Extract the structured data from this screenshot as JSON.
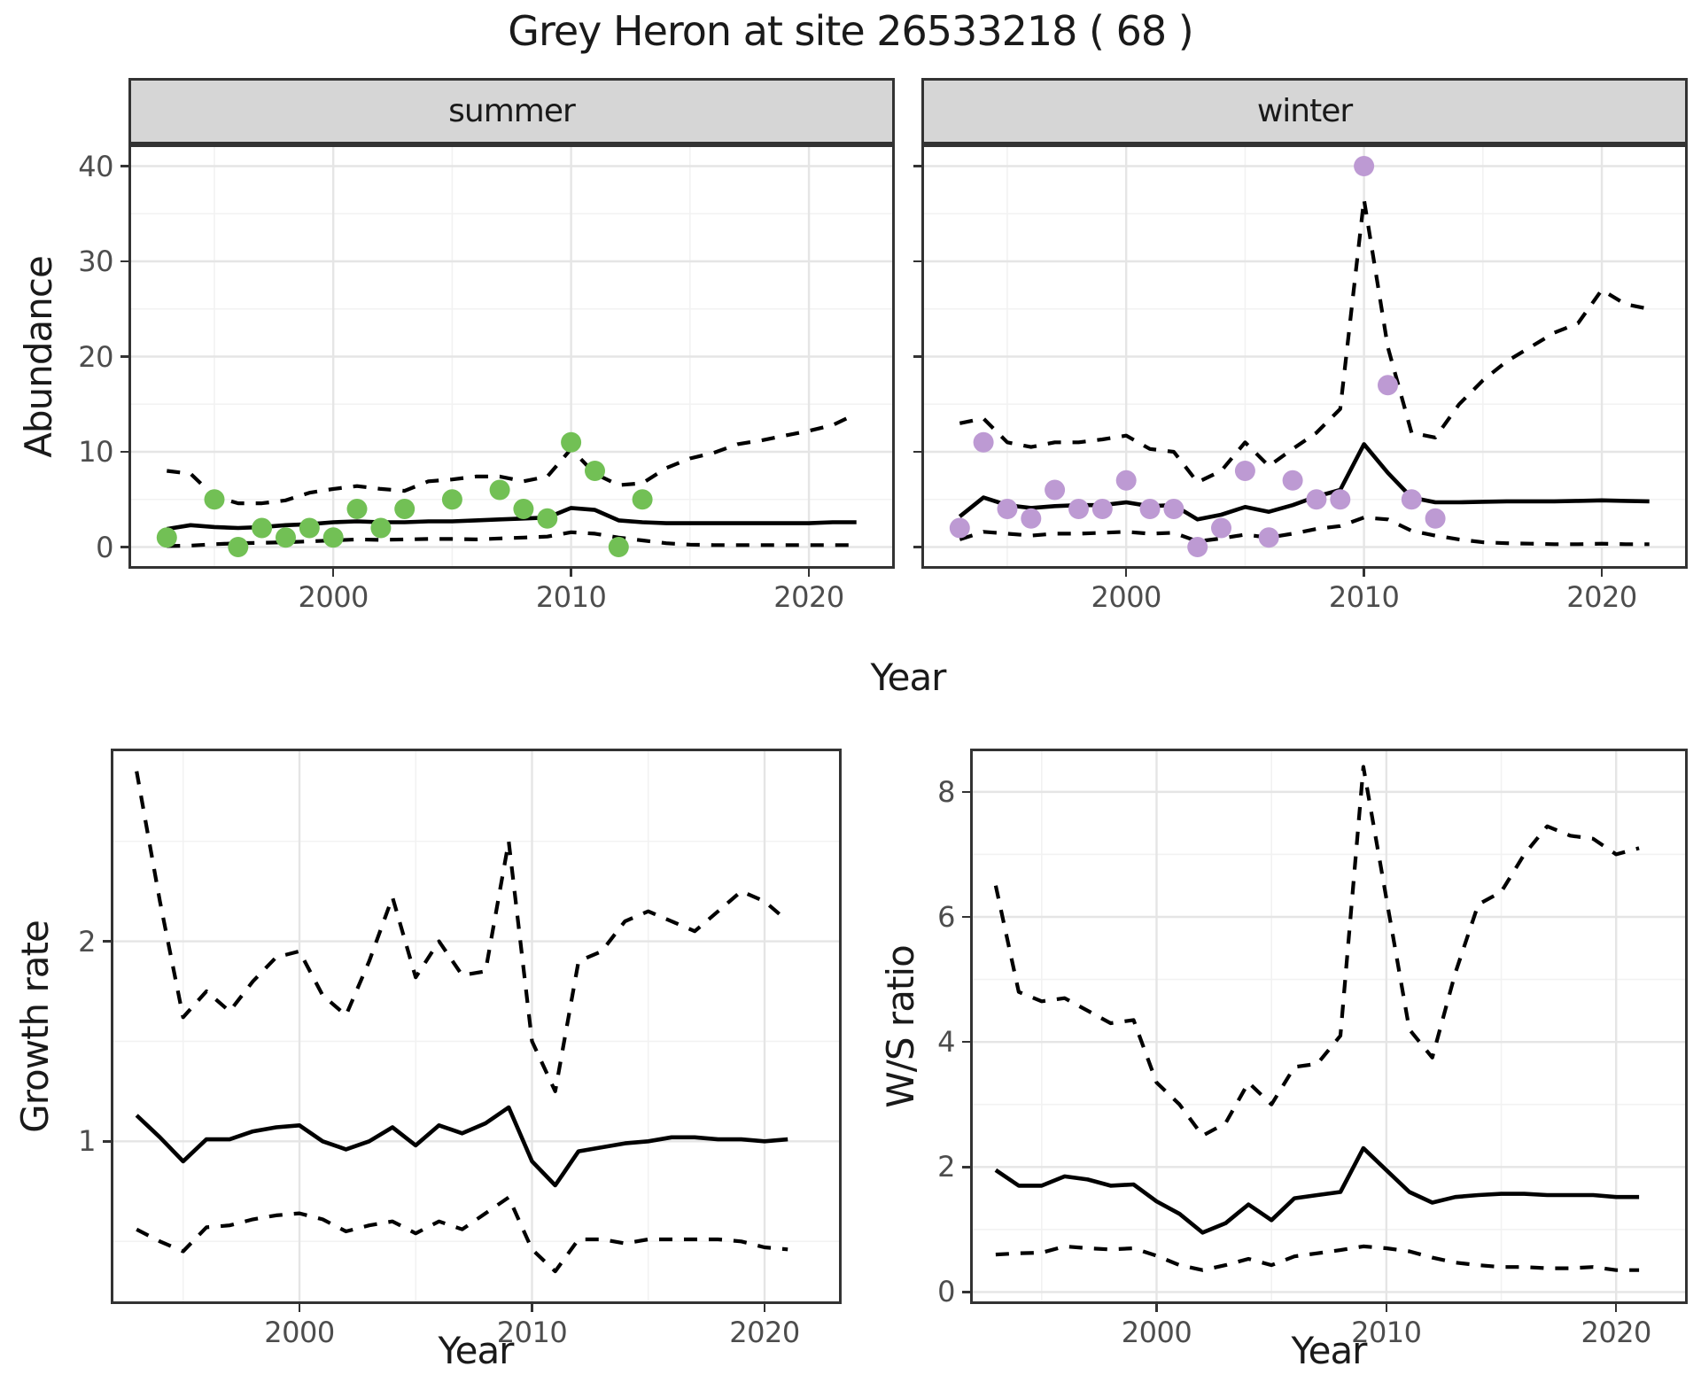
{
  "title": "Grey Heron at site 26533218 ( 68 )",
  "labels": {
    "y_top": "Abundance",
    "y_growth": "Growth rate",
    "y_ws": "W/S ratio",
    "x_top": "Year",
    "x_growth": "Year",
    "x_ws": "Year"
  },
  "colors": {
    "summer_point": "#72c055",
    "winter_point": "#bd9ad3",
    "line": "#000000",
    "strip_bg": "#d6d6d6",
    "panel_border": "#333333",
    "grid_major": "#e5e5e5",
    "grid_minor": "#f2f2f2",
    "tick_text": "#4d4d4d",
    "title_text": "#1a1a1a"
  },
  "chart_data": [
    {
      "id": "summer",
      "type": "line",
      "title": "summer",
      "xlabel": "Year",
      "ylabel": "Abundance",
      "grid": true,
      "legend": "none",
      "xlim": [
        1991.5,
        2023.5
      ],
      "ylim": [
        -2,
        42
      ],
      "x_major_ticks": [
        2000,
        2010,
        2020
      ],
      "x_minor_ticks": [
        1995,
        2005,
        2015
      ],
      "y_major_ticks": [
        0,
        10,
        20,
        30,
        40
      ],
      "y_minor_ticks": [
        5,
        15,
        25,
        35
      ],
      "show_y_tick_labels": true,
      "x": [
        1993,
        1994,
        1995,
        1996,
        1997,
        1998,
        1999,
        2000,
        2001,
        2002,
        2003,
        2004,
        2005,
        2006,
        2007,
        2008,
        2009,
        2010,
        2011,
        2012,
        2013,
        2014,
        2015,
        2016,
        2017,
        2018,
        2019,
        2020,
        2021,
        2022
      ],
      "series": [
        {
          "name": "upper_95ci",
          "style": "dashed",
          "values": [
            8.0,
            7.7,
            5.3,
            4.6,
            4.6,
            4.9,
            5.7,
            6.1,
            6.4,
            6.1,
            5.9,
            6.9,
            7.1,
            7.4,
            7.4,
            6.9,
            7.4,
            10.3,
            7.7,
            6.5,
            6.7,
            8.3,
            9.3,
            9.9,
            10.8,
            11.2,
            11.7,
            12.2,
            12.8,
            14.0
          ]
        },
        {
          "name": "model_fit",
          "style": "solid",
          "values": [
            1.9,
            2.3,
            2.1,
            2.0,
            2.1,
            2.3,
            2.4,
            2.6,
            2.7,
            2.6,
            2.6,
            2.7,
            2.7,
            2.8,
            2.9,
            3.0,
            3.1,
            4.1,
            3.9,
            2.8,
            2.6,
            2.5,
            2.5,
            2.5,
            2.5,
            2.5,
            2.5,
            2.5,
            2.6,
            2.6
          ]
        },
        {
          "name": "lower_95ci",
          "style": "dashed",
          "values": [
            0.1,
            0.15,
            0.3,
            0.4,
            0.45,
            0.5,
            0.6,
            0.7,
            0.8,
            0.75,
            0.8,
            0.85,
            0.85,
            0.8,
            0.9,
            1.0,
            1.1,
            1.55,
            1.4,
            1.0,
            0.7,
            0.4,
            0.25,
            0.2,
            0.2,
            0.2,
            0.2,
            0.2,
            0.2,
            0.2
          ]
        }
      ],
      "points": {
        "name": "observed_counts",
        "color_key": "summer_point",
        "x": [
          1993,
          1995,
          1996,
          1997,
          1998,
          1999,
          2000,
          2001,
          2002,
          2003,
          2005,
          2007,
          2008,
          2009,
          2010,
          2011,
          2012,
          2013
        ],
        "y": [
          1,
          5,
          0,
          2,
          1,
          2,
          1,
          4,
          2,
          4,
          5,
          6,
          4,
          3,
          11,
          8,
          0,
          5
        ]
      }
    },
    {
      "id": "winter",
      "type": "line",
      "title": "winter",
      "xlabel": "Year",
      "ylabel": "Abundance",
      "grid": true,
      "legend": "none",
      "xlim": [
        1991.5,
        2023.5
      ],
      "ylim": [
        -2,
        42
      ],
      "x_major_ticks": [
        2000,
        2010,
        2020
      ],
      "x_minor_ticks": [
        1995,
        2005,
        2015
      ],
      "y_major_ticks": [
        0,
        10,
        20,
        30,
        40
      ],
      "y_minor_ticks": [
        5,
        15,
        25,
        35
      ],
      "show_y_tick_labels": false,
      "x": [
        1993,
        1994,
        1995,
        1996,
        1997,
        1998,
        1999,
        2000,
        2001,
        2002,
        2003,
        2004,
        2005,
        2006,
        2007,
        2008,
        2009,
        2010,
        2011,
        2012,
        2013,
        2014,
        2015,
        2016,
        2017,
        2018,
        2019,
        2020,
        2021,
        2022
      ],
      "series": [
        {
          "name": "upper_95ci",
          "style": "dashed",
          "values": [
            13.0,
            13.5,
            11.0,
            10.5,
            11.0,
            11.0,
            11.3,
            11.7,
            10.3,
            10.0,
            6.8,
            8.0,
            11.0,
            8.5,
            10.3,
            12.0,
            14.5,
            36.5,
            21.0,
            12.0,
            11.5,
            15.0,
            17.5,
            19.5,
            21.0,
            22.5,
            23.5,
            27.0,
            25.5,
            25.0
          ]
        },
        {
          "name": "model_fit",
          "style": "solid",
          "values": [
            3.2,
            5.2,
            4.4,
            4.1,
            4.3,
            4.4,
            4.4,
            4.7,
            4.3,
            4.4,
            2.9,
            3.4,
            4.2,
            3.7,
            4.4,
            5.3,
            6.0,
            10.8,
            7.8,
            5.2,
            4.7,
            4.7,
            4.75,
            4.8,
            4.8,
            4.8,
            4.85,
            4.9,
            4.85,
            4.8
          ]
        },
        {
          "name": "lower_95ci",
          "style": "dashed",
          "values": [
            0.8,
            1.6,
            1.4,
            1.2,
            1.4,
            1.4,
            1.5,
            1.6,
            1.4,
            1.5,
            0.6,
            0.9,
            1.3,
            1.0,
            1.4,
            1.9,
            2.2,
            3.1,
            2.9,
            1.7,
            1.2,
            0.8,
            0.5,
            0.4,
            0.35,
            0.3,
            0.3,
            0.35,
            0.3,
            0.3
          ]
        }
      ],
      "points": {
        "name": "observed_counts",
        "color_key": "winter_point",
        "x": [
          1993,
          1994,
          1995,
          1996,
          1997,
          1998,
          1999,
          2000,
          2001,
          2002,
          2003,
          2004,
          2005,
          2006,
          2007,
          2008,
          2009,
          2010,
          2011,
          2012,
          2013
        ],
        "y": [
          2,
          11,
          4,
          3,
          6,
          4,
          4,
          7,
          4,
          4,
          0,
          2,
          8,
          1,
          7,
          5,
          5,
          40,
          17,
          5,
          3
        ]
      }
    },
    {
      "id": "growth",
      "type": "line",
      "title": null,
      "xlabel": "Year",
      "ylabel": "Growth rate",
      "grid": true,
      "legend": "none",
      "xlim": [
        1992,
        2023.2
      ],
      "ylim": [
        0.2,
        2.95
      ],
      "x_major_ticks": [
        2000,
        2010,
        2020
      ],
      "x_minor_ticks": [
        1995,
        2005,
        2015
      ],
      "y_major_ticks": [
        1,
        2
      ],
      "y_minor_ticks": [
        0.5,
        1.5,
        2.5
      ],
      "show_y_tick_labels": true,
      "x": [
        1993,
        1994,
        1995,
        1996,
        1997,
        1998,
        1999,
        2000,
        2001,
        2002,
        2003,
        2004,
        2005,
        2006,
        2007,
        2008,
        2009,
        2010,
        2011,
        2012,
        2013,
        2014,
        2015,
        2016,
        2017,
        2018,
        2019,
        2020,
        2021
      ],
      "series": [
        {
          "name": "upper_95ci",
          "style": "dashed",
          "values": [
            2.85,
            2.2,
            1.62,
            1.75,
            1.65,
            1.8,
            1.92,
            1.95,
            1.73,
            1.63,
            1.9,
            2.22,
            1.82,
            2.0,
            1.83,
            1.85,
            2.5,
            1.5,
            1.25,
            1.9,
            1.95,
            2.1,
            2.15,
            2.1,
            2.05,
            2.15,
            2.25,
            2.2,
            2.1
          ]
        },
        {
          "name": "model_fit",
          "style": "solid",
          "values": [
            1.13,
            1.02,
            0.9,
            1.01,
            1.01,
            1.05,
            1.07,
            1.08,
            1.0,
            0.96,
            1.0,
            1.07,
            0.98,
            1.08,
            1.04,
            1.09,
            1.17,
            0.9,
            0.78,
            0.95,
            0.97,
            0.99,
            1.0,
            1.02,
            1.02,
            1.01,
            1.01,
            1.0,
            1.01
          ]
        },
        {
          "name": "lower_95ci",
          "style": "dashed",
          "values": [
            0.56,
            0.5,
            0.45,
            0.57,
            0.58,
            0.61,
            0.63,
            0.64,
            0.61,
            0.55,
            0.58,
            0.6,
            0.54,
            0.6,
            0.56,
            0.64,
            0.72,
            0.46,
            0.35,
            0.51,
            0.51,
            0.49,
            0.51,
            0.51,
            0.51,
            0.51,
            0.5,
            0.47,
            0.46
          ]
        }
      ],
      "points": null
    },
    {
      "id": "ws",
      "type": "line",
      "title": null,
      "xlabel": "Year",
      "ylabel": "W/S ratio",
      "grid": true,
      "legend": "none",
      "xlim": [
        1992,
        2023
      ],
      "ylim": [
        -0.15,
        8.65
      ],
      "x_major_ticks": [
        2000,
        2010,
        2020
      ],
      "x_minor_ticks": [
        1995,
        2005,
        2015
      ],
      "y_major_ticks": [
        0,
        2,
        4,
        6,
        8
      ],
      "y_minor_ticks": [
        1,
        3,
        5,
        7
      ],
      "show_y_tick_labels": true,
      "x": [
        1993,
        1994,
        1995,
        1996,
        1997,
        1998,
        1999,
        2000,
        2001,
        2002,
        2003,
        2004,
        2005,
        2006,
        2007,
        2008,
        2009,
        2010,
        2011,
        2012,
        2013,
        2014,
        2015,
        2016,
        2017,
        2018,
        2019,
        2020,
        2021
      ],
      "series": [
        {
          "name": "upper_95ci",
          "style": "dashed",
          "values": [
            6.5,
            4.8,
            4.65,
            4.7,
            4.5,
            4.3,
            4.35,
            3.35,
            3.0,
            2.5,
            2.7,
            3.35,
            3.0,
            3.6,
            3.65,
            4.1,
            8.4,
            6.3,
            4.2,
            3.75,
            5.1,
            6.2,
            6.4,
            7.0,
            7.45,
            7.3,
            7.25,
            7.0,
            7.1
          ]
        },
        {
          "name": "model_fit",
          "style": "solid",
          "values": [
            1.95,
            1.7,
            1.7,
            1.85,
            1.8,
            1.7,
            1.72,
            1.45,
            1.25,
            0.95,
            1.1,
            1.4,
            1.15,
            1.5,
            1.55,
            1.6,
            2.3,
            1.95,
            1.6,
            1.43,
            1.52,
            1.55,
            1.57,
            1.57,
            1.55,
            1.55,
            1.55,
            1.52,
            1.52
          ]
        },
        {
          "name": "lower_95ci",
          "style": "dashed",
          "values": [
            0.6,
            0.62,
            0.63,
            0.73,
            0.7,
            0.68,
            0.7,
            0.58,
            0.43,
            0.35,
            0.43,
            0.53,
            0.43,
            0.57,
            0.62,
            0.67,
            0.73,
            0.7,
            0.65,
            0.55,
            0.47,
            0.43,
            0.4,
            0.4,
            0.38,
            0.38,
            0.4,
            0.35,
            0.35
          ]
        }
      ],
      "points": null
    }
  ]
}
